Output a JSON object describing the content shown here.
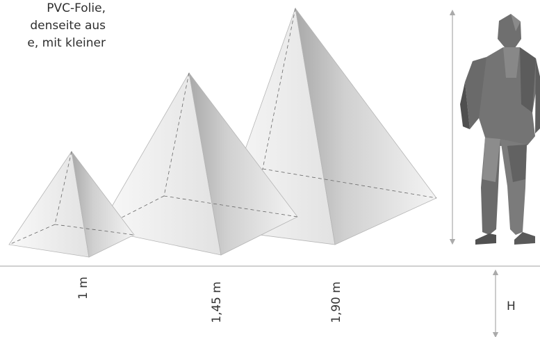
{
  "description": {
    "lines": [
      "PVC-Folie,",
      "denseite aus",
      "e, mit kleiner"
    ]
  },
  "size_labels": {
    "small": "1 m",
    "medium": "1,45 m",
    "large": "1,90 m"
  },
  "height_label": "H"
}
